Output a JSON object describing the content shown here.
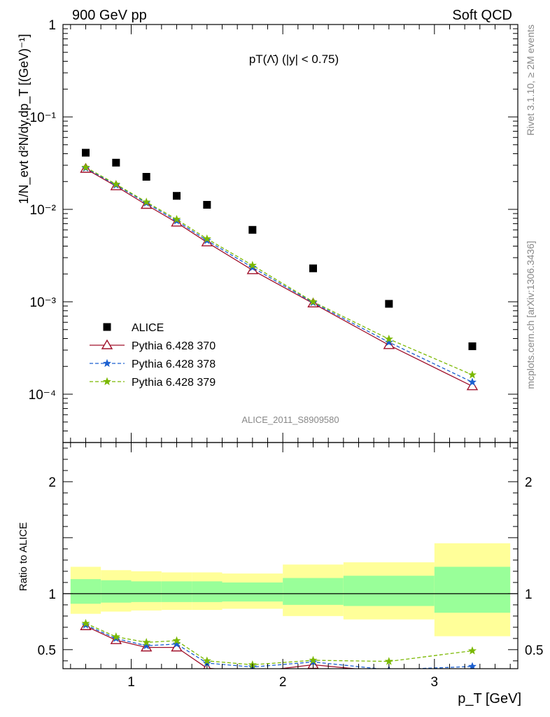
{
  "header": {
    "left": "900 GeV pp",
    "right": "Soft QCD"
  },
  "side_texts": {
    "rivet": "Rivet 3.1.10, ≥ 2M events",
    "mcplots": "mcplots.cern.ch [arXiv:1306.3436]"
  },
  "colors": {
    "data": "#000000",
    "p370": "#a0102a",
    "p378": "#1a5fd0",
    "p379": "#7ab800",
    "band_inner": "#99ff99",
    "band_outer": "#ffff99"
  },
  "chart_data": [
    {
      "type": "scatter",
      "title": "pT(Λ̄) (|y| < 0.75)",
      "annotation": "ALICE_2011_S8909580",
      "ylabel": "1/N_evt d²N/dy,dp_T [(GeV)⁻¹]",
      "yscale": "log",
      "ylim": [
        3e-05,
        1
      ],
      "xlim": [
        0.55,
        3.55
      ],
      "yticklabels": [
        "1",
        "10⁻¹",
        "10⁻²",
        "10⁻³",
        "10⁻⁴"
      ],
      "legend": {
        "position": "bottom-left",
        "entries": [
          "ALICE",
          "Pythia 6.428 370",
          "Pythia 6.428 378",
          "Pythia 6.428 379"
        ]
      },
      "x": [
        0.7,
        0.9,
        1.1,
        1.3,
        1.5,
        1.8,
        2.2,
        2.7,
        3.25
      ],
      "series": [
        {
          "name": "ALICE",
          "values": [
            0.041,
            0.032,
            0.0225,
            0.014,
            0.0112,
            0.006,
            0.0023,
            0.00095,
            0.00033
          ]
        },
        {
          "name": "Pythia 6.428 370",
          "values": [
            0.0275,
            0.0178,
            0.0112,
            0.0072,
            0.0044,
            0.0022,
            0.00096,
            0.00034,
            0.000122
          ]
        },
        {
          "name": "Pythia 6.428 378",
          "values": [
            0.028,
            0.0183,
            0.0117,
            0.0075,
            0.0046,
            0.00235,
            0.00098,
            0.000365,
            0.000135
          ]
        },
        {
          "name": "Pythia 6.428 379",
          "values": [
            0.0285,
            0.0187,
            0.012,
            0.0078,
            0.0048,
            0.00248,
            0.001,
            0.000395,
            0.000162
          ]
        }
      ]
    },
    {
      "type": "line",
      "ylabel": "Ratio to ALICE",
      "xlabel": "p_T [GeV]",
      "xlim": [
        0.55,
        3.55
      ],
      "ylim": [
        0.33,
        2.35
      ],
      "xticklabels": [
        "1",
        "2",
        "3"
      ],
      "yticklabels": [
        "0.5",
        "1",
        "2"
      ],
      "bands": [
        {
          "xmin": 0.6,
          "xmax": 0.8,
          "inner": [
            0.91,
            1.13
          ],
          "outer": [
            0.82,
            1.24
          ]
        },
        {
          "xmin": 0.8,
          "xmax": 1.0,
          "inner": [
            0.92,
            1.12
          ],
          "outer": [
            0.84,
            1.21
          ]
        },
        {
          "xmin": 1.0,
          "xmax": 1.2,
          "inner": [
            0.925,
            1.11
          ],
          "outer": [
            0.85,
            1.2
          ]
        },
        {
          "xmin": 1.2,
          "xmax": 1.4,
          "inner": [
            0.925,
            1.11
          ],
          "outer": [
            0.855,
            1.19
          ]
        },
        {
          "xmin": 1.4,
          "xmax": 1.6,
          "inner": [
            0.925,
            1.11
          ],
          "outer": [
            0.855,
            1.19
          ]
        },
        {
          "xmin": 1.6,
          "xmax": 2.0,
          "inner": [
            0.93,
            1.1
          ],
          "outer": [
            0.865,
            1.18
          ]
        },
        {
          "xmin": 2.0,
          "xmax": 2.4,
          "inner": [
            0.9,
            1.14
          ],
          "outer": [
            0.8,
            1.26
          ]
        },
        {
          "xmin": 2.4,
          "xmax": 3.0,
          "inner": [
            0.89,
            1.16
          ],
          "outer": [
            0.77,
            1.28
          ]
        },
        {
          "xmin": 3.0,
          "xmax": 3.5,
          "inner": [
            0.83,
            1.24
          ],
          "outer": [
            0.62,
            1.45
          ]
        }
      ],
      "x": [
        0.7,
        0.9,
        1.1,
        1.3,
        1.5,
        1.8,
        2.2,
        2.7,
        3.25
      ],
      "series": [
        {
          "name": "Pythia 6.428 370",
          "values": [
            0.71,
            0.585,
            0.52,
            0.52,
            0.335,
            0.3,
            0.365,
            0.3,
            0.3
          ]
        },
        {
          "name": "Pythia 6.428 378",
          "values": [
            0.72,
            0.6,
            0.535,
            0.55,
            0.38,
            0.345,
            0.39,
            0.32,
            0.35
          ]
        },
        {
          "name": "Pythia 6.428 379",
          "values": [
            0.735,
            0.615,
            0.565,
            0.58,
            0.4,
            0.365,
            0.405,
            0.395,
            0.49
          ]
        }
      ]
    }
  ]
}
